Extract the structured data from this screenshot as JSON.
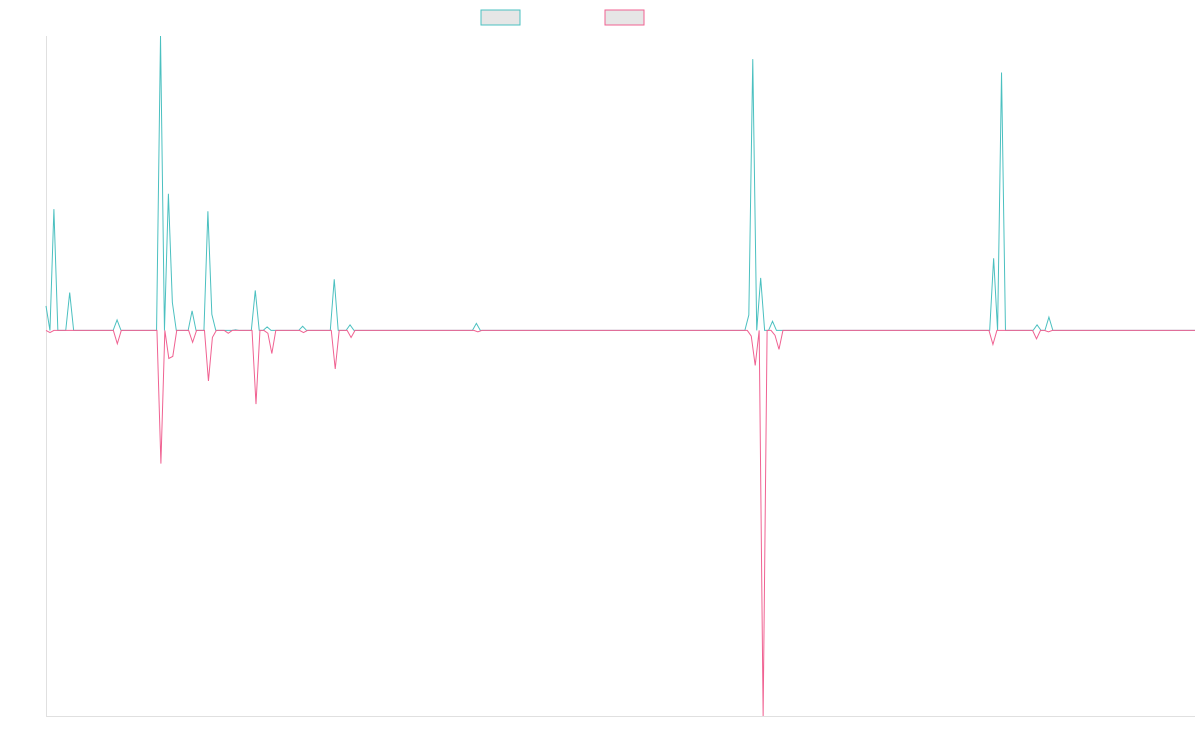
{
  "chart_data": {
    "type": "line",
    "title": "",
    "xlabel": "",
    "ylabel": "",
    "ylim": [
      -0.55,
      0.42
    ],
    "grid": false,
    "legend": {
      "placement": "top-center"
    },
    "series": [
      {
        "name": "",
        "color": "#4bc0c0",
        "legend_fill": "#e6e6e6",
        "values": [
          0.035,
          0,
          0.173,
          0,
          0,
          0,
          0.054,
          0,
          0,
          0,
          0,
          0,
          0,
          0,
          0,
          0,
          0,
          0,
          0.015,
          0,
          0,
          0,
          0,
          0,
          0,
          0,
          0,
          0,
          0,
          0.42,
          0,
          0.195,
          0.04,
          0,
          0,
          0,
          0,
          0.028,
          0,
          0,
          0,
          0.17,
          0.023,
          0,
          0,
          0,
          0,
          0,
          0.001,
          0,
          0,
          0,
          0,
          0.057,
          0,
          0,
          0.005,
          0,
          0,
          0,
          0,
          0,
          0,
          0,
          0,
          0.006,
          0,
          0,
          0,
          0,
          0,
          0,
          0,
          0.073,
          0,
          0,
          0,
          0.008,
          0,
          0,
          0,
          0,
          0,
          0,
          0,
          0,
          0,
          0,
          0,
          0,
          0,
          0,
          0,
          0,
          0,
          0,
          0,
          0,
          0,
          0,
          0,
          0,
          0,
          0,
          0,
          0,
          0,
          0,
          0,
          0.01,
          0,
          0,
          0,
          0,
          0,
          0,
          0,
          0,
          0,
          0,
          0,
          0,
          0,
          0,
          0,
          0,
          0,
          0,
          0,
          0,
          0,
          0,
          0,
          0,
          0,
          0,
          0,
          0,
          0,
          0,
          0,
          0,
          0,
          0,
          0,
          0,
          0,
          0,
          0,
          0,
          0,
          0,
          0,
          0,
          0,
          0,
          0,
          0,
          0,
          0,
          0,
          0,
          0,
          0,
          0,
          0,
          0,
          0,
          0,
          0,
          0,
          0,
          0,
          0,
          0,
          0,
          0,
          0,
          0.022,
          0.387,
          0,
          0.075,
          0,
          0,
          0.013,
          0,
          0,
          0,
          0,
          0,
          0,
          0,
          0,
          0,
          0,
          0,
          0,
          0,
          0,
          0,
          0,
          0,
          0,
          0,
          0,
          0,
          0,
          0,
          0,
          0,
          0,
          0,
          0,
          0,
          0,
          0,
          0,
          0,
          0,
          0,
          0,
          0,
          0,
          0,
          0,
          0,
          0,
          0,
          0,
          0,
          0,
          0,
          0,
          0,
          0,
          0,
          0,
          0,
          0,
          0,
          0.103,
          0,
          0.368,
          0,
          0,
          0,
          0,
          0,
          0,
          0,
          0,
          0.008,
          0,
          0,
          0.019,
          0,
          0,
          0,
          0,
          0,
          0,
          0,
          0,
          0,
          0,
          0,
          0,
          0,
          0,
          0,
          0,
          0,
          0,
          0,
          0,
          0,
          0,
          0,
          0,
          0,
          0,
          0,
          0,
          0,
          0,
          0,
          0,
          0,
          0,
          0,
          0,
          0
        ]
      },
      {
        "name": "",
        "color": "#f06292",
        "legend_fill": "#e6e6e6",
        "values": [
          0,
          -0.003,
          0,
          0,
          0,
          0,
          0,
          0,
          0,
          0,
          0,
          0,
          0,
          0,
          0,
          0,
          0,
          0,
          -0.019,
          0,
          0,
          0,
          0,
          0,
          0,
          0,
          0,
          0,
          0,
          -0.19,
          0,
          -0.04,
          -0.037,
          0,
          0,
          0,
          0,
          -0.017,
          0,
          0,
          0,
          -0.072,
          -0.01,
          0,
          0,
          0,
          -0.004,
          0,
          0,
          0,
          0,
          0,
          0,
          -0.105,
          0,
          0,
          -0.004,
          -0.033,
          0,
          0,
          0,
          0,
          0,
          0,
          0,
          -0.003,
          0,
          0,
          0,
          0,
          0,
          0,
          0,
          -0.055,
          0,
          0,
          0,
          -0.01,
          0,
          0,
          0,
          0,
          0,
          0,
          0,
          0,
          0,
          0,
          0,
          0,
          0,
          0,
          0,
          0,
          0,
          0,
          0,
          0,
          0,
          0,
          0,
          0,
          0,
          0,
          0,
          0,
          0,
          0,
          0,
          -0.002,
          0,
          0,
          0,
          0,
          0,
          0,
          0,
          0,
          0,
          0,
          0,
          0,
          0,
          0,
          0,
          0,
          0,
          0,
          0,
          0,
          0,
          0,
          0,
          0,
          0,
          0,
          0,
          0,
          0,
          0,
          0,
          0,
          0,
          0,
          0,
          0,
          0,
          0,
          0,
          0,
          0,
          0,
          0,
          0,
          0,
          0,
          0,
          0,
          0,
          0,
          0,
          0,
          0,
          0,
          0,
          0,
          0,
          0,
          0,
          0,
          0,
          0,
          0,
          0,
          0,
          0,
          0,
          0,
          -0.008,
          -0.05,
          0,
          -0.55,
          0,
          0,
          -0.007,
          -0.027,
          0,
          0,
          0,
          0,
          0,
          0,
          0,
          0,
          0,
          0,
          0,
          0,
          0,
          0,
          0,
          0,
          0,
          0,
          0,
          0,
          0,
          0,
          0,
          0,
          0,
          0,
          0,
          0,
          0,
          0,
          0,
          0,
          0,
          0,
          0,
          0,
          0,
          0,
          0,
          0,
          0,
          0,
          0,
          0,
          0,
          0,
          0,
          0,
          0,
          0,
          0,
          0,
          0,
          -0.02,
          0,
          0,
          0,
          0,
          0,
          0,
          0,
          0,
          0,
          0,
          -0.012,
          0,
          0,
          -0.002,
          0,
          0,
          0,
          0,
          0,
          0,
          0,
          0,
          0,
          0,
          0,
          0,
          0,
          0,
          0,
          0,
          0,
          0,
          0,
          0,
          0,
          0,
          0,
          0,
          0,
          0,
          0,
          0,
          0,
          0,
          0,
          0,
          0,
          0,
          0,
          0,
          0
        ]
      }
    ]
  }
}
